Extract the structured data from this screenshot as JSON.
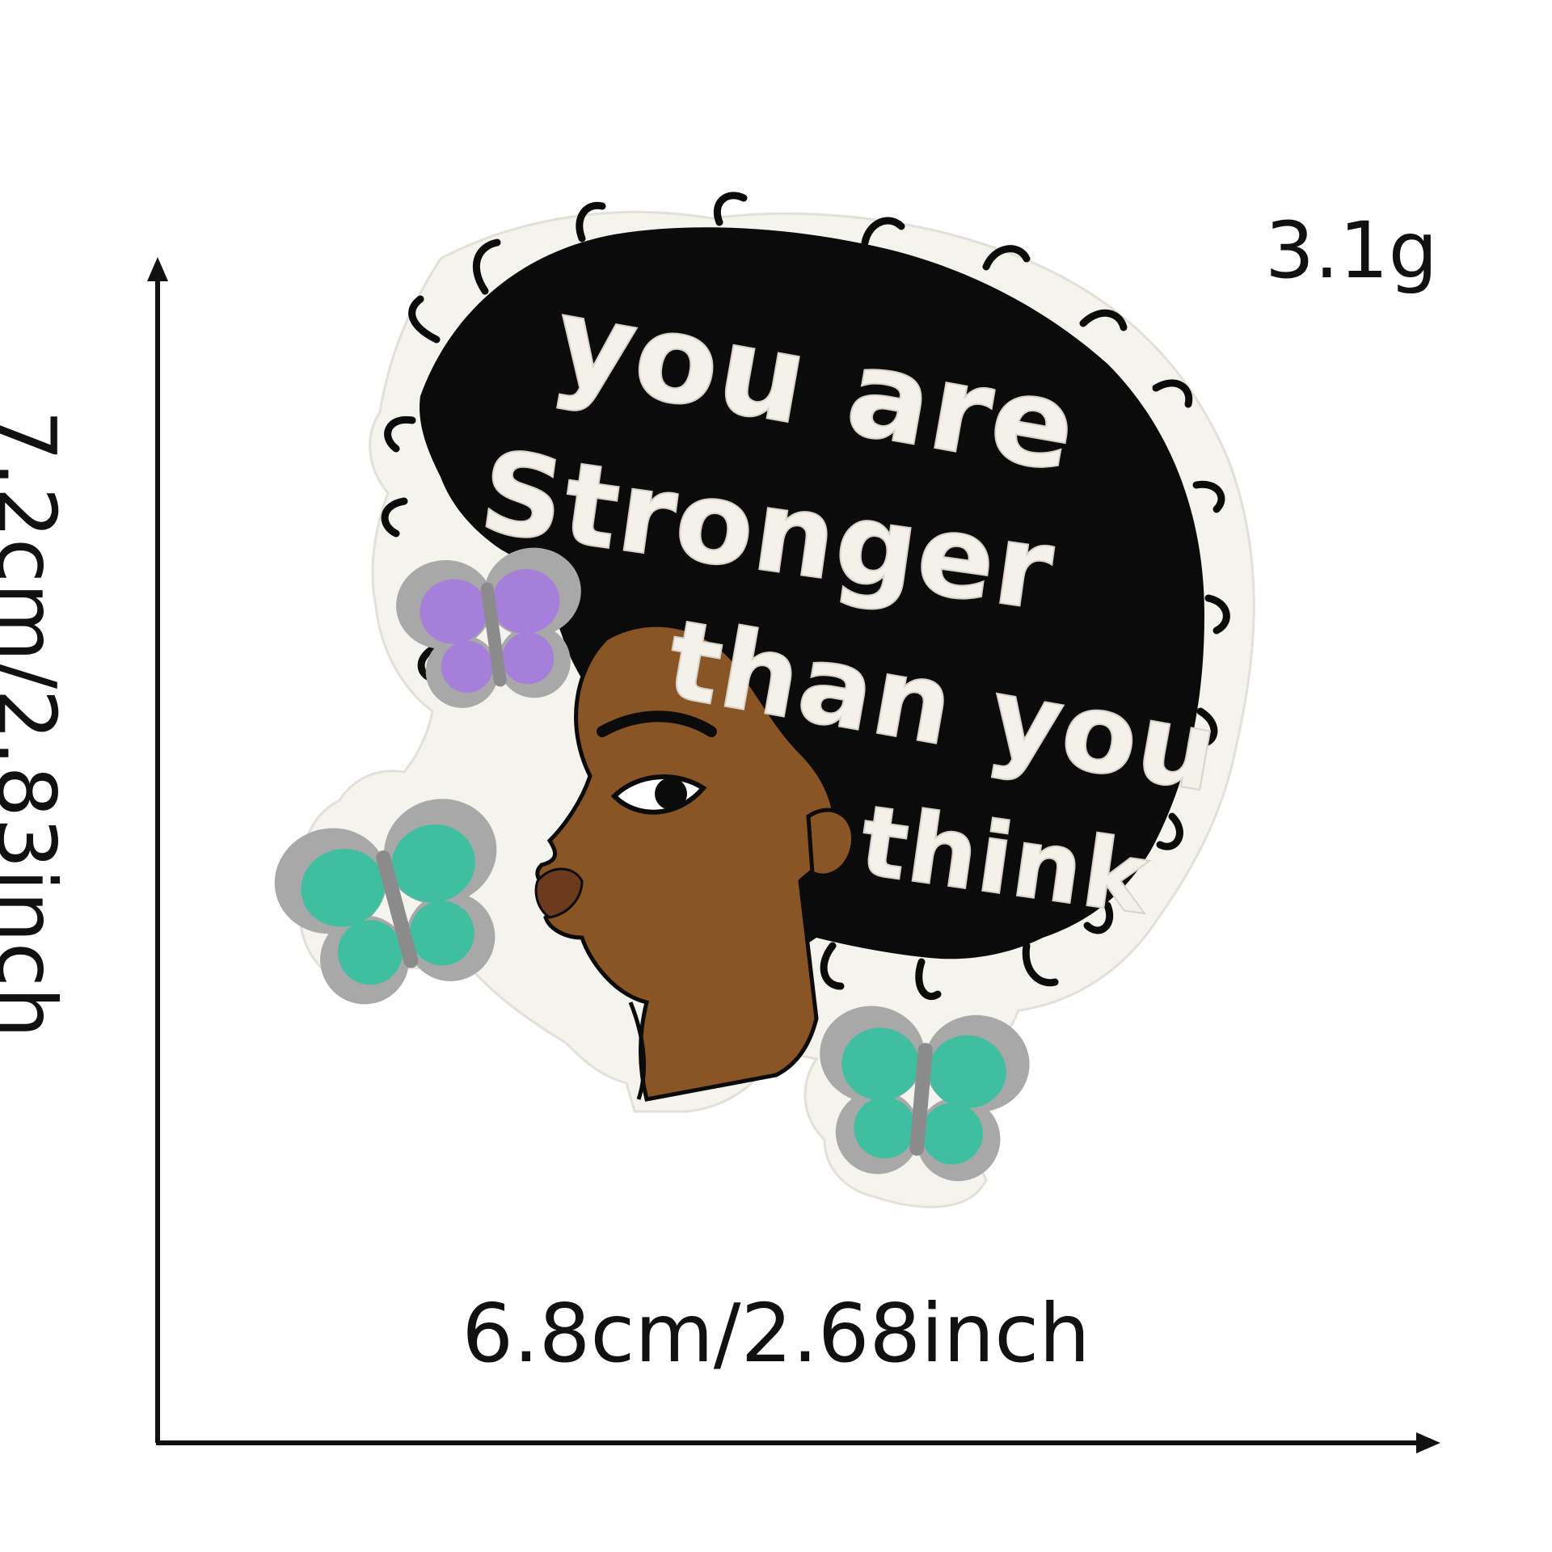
{
  "product": {
    "patch_text_lines": [
      "you are",
      "Stronger",
      "than you",
      "think"
    ],
    "weight": "3.1g",
    "width_dimension": "6.8cm/2.68inch",
    "height_dimension": "7.2cm/2.83inch"
  },
  "colors": {
    "hair": "#0b0b0b",
    "border": "#f5f3ee",
    "skin": "#8a5524",
    "lips": "#6b3a1f",
    "butterfly_purple": "#a57fd9",
    "butterfly_teal": "#3fbf9f",
    "butterfly_fringe": "#a8a8a8",
    "arrow": "#111111"
  },
  "icons": [
    "purple-butterfly-icon",
    "teal-butterfly-icon"
  ]
}
